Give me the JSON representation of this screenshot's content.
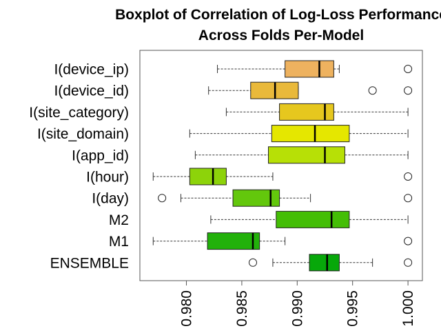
{
  "chart_data": {
    "type": "boxplot",
    "orientation": "horizontal",
    "title": "Boxplot of Correlation of Log-Loss Performance Across Folds Per-Model",
    "title_lines": [
      "Boxplot of Correlation of Log-Loss Performance",
      "Across Folds Per-Model"
    ],
    "xlabel": "",
    "ylabel": "",
    "xlim": [
      0.9758,
      1.0013
    ],
    "x_ticks": [
      0.98,
      0.985,
      0.99,
      0.995,
      1.0
    ],
    "x_tick_labels": [
      "0.980",
      "0.985",
      "0.990",
      "0.995",
      "1.000"
    ],
    "grid": false,
    "legend": "none",
    "categories": [
      "I(device_ip)",
      "I(device_id)",
      "I(site_category)",
      "I(site_domain)",
      "I(app_id)",
      "I(hour)",
      "I(day)",
      "M2",
      "M1",
      "ENSEMBLE"
    ],
    "boxes": [
      {
        "label": "I(device_ip)",
        "whisker_low": 0.9828,
        "q1": 0.9889,
        "median": 0.992,
        "q3": 0.9933,
        "whisker_high": 0.9938,
        "outliers": [
          1.0
        ],
        "color": "#eeb25f"
      },
      {
        "label": "I(device_id)",
        "whisker_low": 0.982,
        "q1": 0.9858,
        "median": 0.988,
        "q3": 0.9901,
        "whisker_high": 0.9901,
        "outliers": [
          0.9968,
          1.0
        ],
        "color": "#e9b93a"
      },
      {
        "label": "I(site_category)",
        "whisker_low": 0.9836,
        "q1": 0.9884,
        "median": 0.9925,
        "q3": 0.9933,
        "whisker_high": 1.0,
        "outliers": [],
        "color": "#e6c71e"
      },
      {
        "label": "I(site_domain)",
        "whisker_low": 0.9803,
        "q1": 0.9877,
        "median": 0.9916,
        "q3": 0.9947,
        "whisker_high": 1.0,
        "outliers": [],
        "color": "#e5e700"
      },
      {
        "label": "I(app_id)",
        "whisker_low": 0.9808,
        "q1": 0.9874,
        "median": 0.9925,
        "q3": 0.9943,
        "whisker_high": 1.0,
        "outliers": [],
        "color": "#b7e006"
      },
      {
        "label": "I(hour)",
        "whisker_low": 0.977,
        "q1": 0.9803,
        "median": 0.9824,
        "q3": 0.9836,
        "whisker_high": 0.9878,
        "outliers": [
          1.0
        ],
        "color": "#8dd30a"
      },
      {
        "label": "I(day)",
        "whisker_low": 0.9795,
        "q1": 0.9842,
        "median": 0.9876,
        "q3": 0.9884,
        "whisker_high": 0.9912,
        "outliers": [
          0.9778,
          1.0
        ],
        "color": "#63c70c"
      },
      {
        "label": "M2",
        "whisker_low": 0.9822,
        "q1": 0.9881,
        "median": 0.9931,
        "q3": 0.9947,
        "whisker_high": 1.0,
        "outliers": [],
        "color": "#44be06"
      },
      {
        "label": "M1",
        "whisker_low": 0.977,
        "q1": 0.9819,
        "median": 0.986,
        "q3": 0.9866,
        "whisker_high": 0.9889,
        "outliers": [
          1.0
        ],
        "color": "#22b10a"
      },
      {
        "label": "ENSEMBLE",
        "whisker_low": 0.9878,
        "q1": 0.9911,
        "median": 0.9927,
        "q3": 0.9938,
        "whisker_high": 0.9968,
        "outliers": [
          0.986,
          1.0
        ],
        "color": "#07a80a"
      }
    ]
  }
}
